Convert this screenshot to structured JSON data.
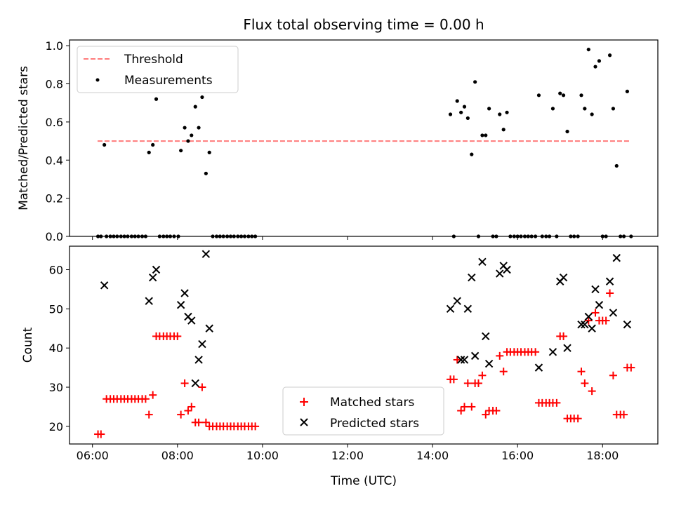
{
  "chart_data": [
    {
      "type": "scatter",
      "title": "Flux total observing time = 0.00 h",
      "xlabel": "",
      "ylabel": "Matched/Predicted stars",
      "xlim": [
        5.46,
        19.3
      ],
      "ylim": [
        0.0,
        1.03
      ],
      "xticks": [
        6,
        8,
        10,
        12,
        14,
        16,
        18
      ],
      "xtick_labels": [
        "",
        "",
        "",
        "",
        "",
        "",
        ""
      ],
      "yticks": [
        0.0,
        0.2,
        0.4,
        0.6,
        0.8,
        1.0
      ],
      "ytick_labels": [
        "0.0",
        "0.2",
        "0.4",
        "0.6",
        "0.8",
        "1.0"
      ],
      "legend": {
        "location": "upper-left",
        "entries": [
          "Threshold",
          "Measurements"
        ]
      },
      "series": [
        {
          "name": "Threshold",
          "kind": "dashed-line",
          "color": "#ff7b7b",
          "x": [
            6.12,
            18.65
          ],
          "y": [
            0.5,
            0.5
          ]
        },
        {
          "name": "Measurements",
          "kind": "dot",
          "color": "#000000",
          "points": [
            [
              6.13,
              0
            ],
            [
              6.2,
              0
            ],
            [
              6.28,
              0.48
            ],
            [
              6.33,
              0
            ],
            [
              6.42,
              0
            ],
            [
              6.5,
              0
            ],
            [
              6.58,
              0
            ],
            [
              6.67,
              0
            ],
            [
              6.75,
              0
            ],
            [
              6.83,
              0
            ],
            [
              6.92,
              0
            ],
            [
              7.0,
              0
            ],
            [
              7.08,
              0
            ],
            [
              7.17,
              0
            ],
            [
              7.25,
              0
            ],
            [
              7.33,
              0.44
            ],
            [
              7.42,
              0.48
            ],
            [
              7.5,
              0.72
            ],
            [
              7.58,
              0
            ],
            [
              7.67,
              0
            ],
            [
              7.75,
              0
            ],
            [
              7.83,
              0
            ],
            [
              7.92,
              0
            ],
            [
              8.02,
              0
            ],
            [
              8.08,
              0.45
            ],
            [
              8.17,
              0.57
            ],
            [
              8.25,
              0.5
            ],
            [
              8.33,
              0.53
            ],
            [
              8.42,
              0.68
            ],
            [
              8.5,
              0.57
            ],
            [
              8.58,
              0.73
            ],
            [
              8.67,
              0.33
            ],
            [
              8.75,
              0.44
            ],
            [
              8.83,
              0
            ],
            [
              8.92,
              0
            ],
            [
              9.0,
              0
            ],
            [
              9.08,
              0
            ],
            [
              9.17,
              0
            ],
            [
              9.25,
              0
            ],
            [
              9.33,
              0
            ],
            [
              9.42,
              0
            ],
            [
              9.5,
              0
            ],
            [
              9.58,
              0
            ],
            [
              9.67,
              0
            ],
            [
              9.75,
              0
            ],
            [
              9.83,
              0
            ],
            [
              14.42,
              0.64
            ],
            [
              14.5,
              0
            ],
            [
              14.58,
              0.71
            ],
            [
              14.67,
              0.65
            ],
            [
              14.75,
              0.68
            ],
            [
              14.83,
              0.62
            ],
            [
              14.92,
              0.43
            ],
            [
              15.0,
              0.81
            ],
            [
              15.08,
              0
            ],
            [
              15.17,
              0.53
            ],
            [
              15.25,
              0.53
            ],
            [
              15.33,
              0.67
            ],
            [
              15.42,
              0
            ],
            [
              15.5,
              0
            ],
            [
              15.58,
              0.64
            ],
            [
              15.67,
              0.56
            ],
            [
              15.75,
              0.65
            ],
            [
              15.83,
              0
            ],
            [
              15.92,
              0
            ],
            [
              16.0,
              0
            ],
            [
              16.08,
              0
            ],
            [
              16.17,
              0
            ],
            [
              16.25,
              0
            ],
            [
              16.33,
              0
            ],
            [
              16.42,
              0
            ],
            [
              16.5,
              0.74
            ],
            [
              16.58,
              0
            ],
            [
              16.67,
              0
            ],
            [
              16.75,
              0
            ],
            [
              16.83,
              0.67
            ],
            [
              16.92,
              0
            ],
            [
              17.0,
              0.75
            ],
            [
              17.08,
              0.74
            ],
            [
              17.17,
              0.55
            ],
            [
              17.25,
              0
            ],
            [
              17.33,
              0
            ],
            [
              17.42,
              0
            ],
            [
              17.5,
              0.74
            ],
            [
              17.58,
              0.67
            ],
            [
              17.67,
              0.98
            ],
            [
              17.75,
              0.64
            ],
            [
              17.83,
              0.89
            ],
            [
              17.92,
              0.92
            ],
            [
              18.0,
              0
            ],
            [
              18.08,
              0
            ],
            [
              18.17,
              0.95
            ],
            [
              18.25,
              0.67
            ],
            [
              18.33,
              0.37
            ],
            [
              18.42,
              0
            ],
            [
              18.5,
              0
            ],
            [
              18.58,
              0.76
            ],
            [
              18.67,
              0
            ]
          ]
        }
      ]
    },
    {
      "type": "scatter",
      "xlabel": "Time (UTC)",
      "ylabel": "Count",
      "xlim": [
        5.46,
        19.3
      ],
      "ylim": [
        15.5,
        66
      ],
      "xticks": [
        6,
        8,
        10,
        12,
        14,
        16,
        18
      ],
      "xtick_labels": [
        "06:00",
        "08:00",
        "10:00",
        "12:00",
        "14:00",
        "16:00",
        "18:00"
      ],
      "yticks": [
        20,
        30,
        40,
        50,
        60
      ],
      "ytick_labels": [
        "20",
        "30",
        "40",
        "50",
        "60"
      ],
      "legend": {
        "location": "lower-center",
        "entries": [
          "Matched stars",
          "Predicted stars"
        ]
      },
      "series": [
        {
          "name": "Matched stars",
          "kind": "plus",
          "color": "#ff0000",
          "points": [
            [
              6.13,
              18
            ],
            [
              6.2,
              18
            ],
            [
              6.33,
              27
            ],
            [
              6.42,
              27
            ],
            [
              6.5,
              27
            ],
            [
              6.58,
              27
            ],
            [
              6.67,
              27
            ],
            [
              6.75,
              27
            ],
            [
              6.83,
              27
            ],
            [
              6.92,
              27
            ],
            [
              7.0,
              27
            ],
            [
              7.08,
              27
            ],
            [
              7.17,
              27
            ],
            [
              7.25,
              27
            ],
            [
              7.33,
              23
            ],
            [
              7.42,
              28
            ],
            [
              7.5,
              43
            ],
            [
              7.58,
              43
            ],
            [
              7.67,
              43
            ],
            [
              7.75,
              43
            ],
            [
              7.83,
              43
            ],
            [
              7.92,
              43
            ],
            [
              8.0,
              43
            ],
            [
              8.08,
              23
            ],
            [
              8.17,
              31
            ],
            [
              8.25,
              24
            ],
            [
              8.33,
              25
            ],
            [
              8.42,
              21
            ],
            [
              8.5,
              21
            ],
            [
              8.58,
              30
            ],
            [
              8.67,
              21
            ],
            [
              8.75,
              20
            ],
            [
              8.83,
              20
            ],
            [
              8.92,
              20
            ],
            [
              9.0,
              20
            ],
            [
              9.08,
              20
            ],
            [
              9.17,
              20
            ],
            [
              9.25,
              20
            ],
            [
              9.33,
              20
            ],
            [
              9.42,
              20
            ],
            [
              9.5,
              20
            ],
            [
              9.58,
              20
            ],
            [
              9.67,
              20
            ],
            [
              9.75,
              20
            ],
            [
              9.83,
              20
            ],
            [
              14.42,
              32
            ],
            [
              14.5,
              32
            ],
            [
              14.58,
              37
            ],
            [
              14.67,
              24
            ],
            [
              14.75,
              25
            ],
            [
              14.83,
              31
            ],
            [
              14.92,
              25
            ],
            [
              15.0,
              31
            ],
            [
              15.08,
              31
            ],
            [
              15.17,
              33
            ],
            [
              15.25,
              23
            ],
            [
              15.33,
              24
            ],
            [
              15.42,
              24
            ],
            [
              15.5,
              24
            ],
            [
              15.58,
              38
            ],
            [
              15.67,
              34
            ],
            [
              15.75,
              39
            ],
            [
              15.83,
              39
            ],
            [
              15.92,
              39
            ],
            [
              16.0,
              39
            ],
            [
              16.08,
              39
            ],
            [
              16.17,
              39
            ],
            [
              16.25,
              39
            ],
            [
              16.33,
              39
            ],
            [
              16.42,
              39
            ],
            [
              16.5,
              26
            ],
            [
              16.58,
              26
            ],
            [
              16.67,
              26
            ],
            [
              16.75,
              26
            ],
            [
              16.83,
              26
            ],
            [
              16.92,
              26
            ],
            [
              17.0,
              43
            ],
            [
              17.08,
              43
            ],
            [
              17.17,
              22
            ],
            [
              17.25,
              22
            ],
            [
              17.33,
              22
            ],
            [
              17.42,
              22
            ],
            [
              17.5,
              34
            ],
            [
              17.58,
              31
            ],
            [
              17.67,
              47
            ],
            [
              17.75,
              29
            ],
            [
              17.83,
              49
            ],
            [
              17.92,
              47
            ],
            [
              18.0,
              47
            ],
            [
              18.08,
              47
            ],
            [
              18.17,
              54
            ],
            [
              18.25,
              33
            ],
            [
              18.33,
              23
            ],
            [
              18.42,
              23
            ],
            [
              18.5,
              23
            ],
            [
              18.58,
              35
            ],
            [
              18.67,
              35
            ]
          ]
        },
        {
          "name": "Predicted stars",
          "kind": "x",
          "color": "#000000",
          "points": [
            [
              6.28,
              56
            ],
            [
              7.33,
              52
            ],
            [
              7.42,
              58
            ],
            [
              7.5,
              60
            ],
            [
              8.08,
              51
            ],
            [
              8.17,
              54
            ],
            [
              8.25,
              48
            ],
            [
              8.33,
              47
            ],
            [
              8.42,
              31
            ],
            [
              8.5,
              37
            ],
            [
              8.58,
              41
            ],
            [
              8.67,
              64
            ],
            [
              8.75,
              45
            ],
            [
              14.42,
              50
            ],
            [
              14.58,
              52
            ],
            [
              14.67,
              37
            ],
            [
              14.75,
              37
            ],
            [
              14.83,
              50
            ],
            [
              14.92,
              58
            ],
            [
              15.0,
              38
            ],
            [
              15.17,
              62
            ],
            [
              15.25,
              43
            ],
            [
              15.33,
              36
            ],
            [
              15.58,
              59
            ],
            [
              15.67,
              61
            ],
            [
              15.75,
              60
            ],
            [
              16.5,
              35
            ],
            [
              16.83,
              39
            ],
            [
              17.0,
              57
            ],
            [
              17.08,
              58
            ],
            [
              17.17,
              40
            ],
            [
              17.5,
              46
            ],
            [
              17.58,
              46
            ],
            [
              17.67,
              48
            ],
            [
              17.75,
              45
            ],
            [
              17.83,
              55
            ],
            [
              17.92,
              51
            ],
            [
              18.17,
              57
            ],
            [
              18.25,
              49
            ],
            [
              18.33,
              63
            ],
            [
              18.58,
              46
            ]
          ]
        }
      ]
    }
  ]
}
